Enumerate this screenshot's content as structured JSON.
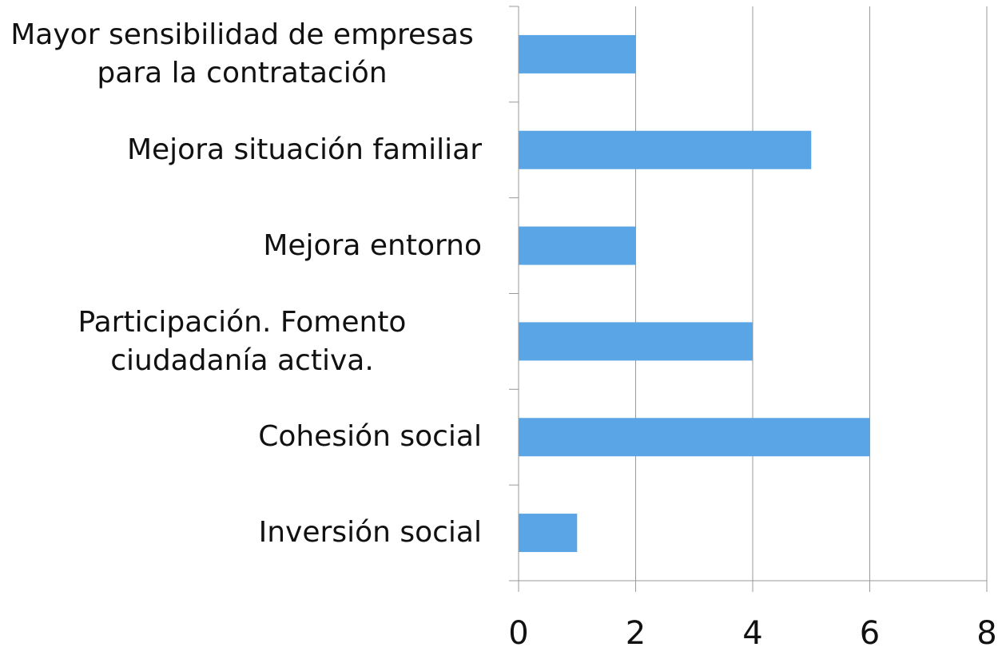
{
  "chart_data": {
    "type": "hbar",
    "categories": [
      "Mayor sensibilidad de empresas para la contratación",
      "Mejora situación familiar",
      "Mejora entorno",
      "Participación. Fomento ciudadanía activa.",
      "Cohesión social",
      "Inversión social"
    ],
    "values": [
      2,
      5,
      2,
      4,
      6,
      1
    ],
    "color": "#59a5e6",
    "xlim": [
      0,
      8
    ],
    "xticks": [
      0,
      2,
      4,
      6,
      8
    ],
    "grid": true
  }
}
